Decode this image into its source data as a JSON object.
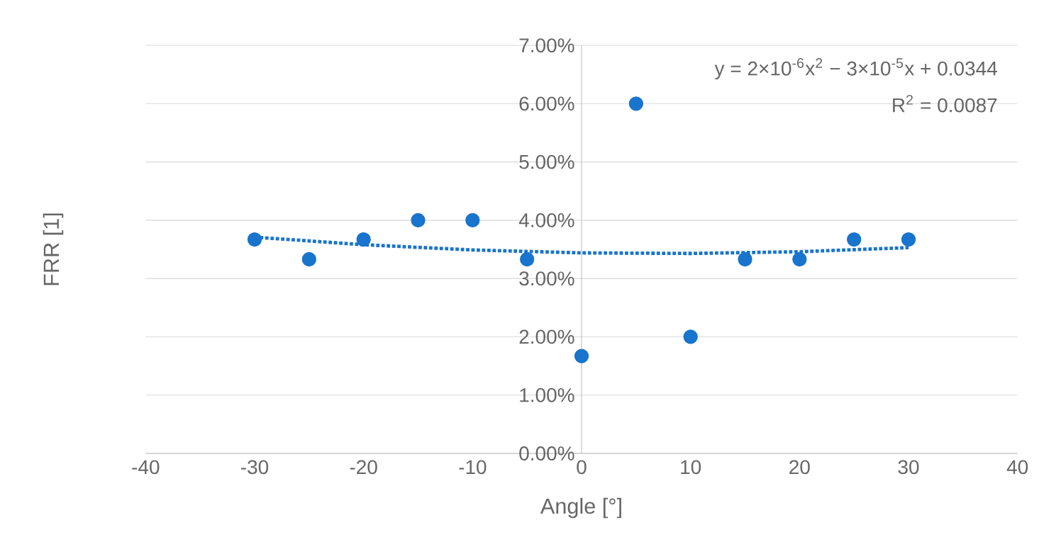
{
  "chart_data": {
    "type": "scatter",
    "xlabel": "Angle [°]",
    "ylabel": "FRR [1]",
    "annotations": [
      "y = 2×10$^{-6}$x$^{2}$ − 3×10$^{-5}$x + 0.0344",
      "R$^{2}$ = 0.0087"
    ],
    "series": [
      {
        "color": "#1874cd",
        "marker": "circle",
        "x": [
          -30,
          -25,
          -20,
          -15,
          -10,
          -5,
          0,
          5,
          10,
          15,
          20,
          25,
          30
        ],
        "values": [
          3.67,
          3.33,
          3.67,
          4.0,
          4.0,
          3.33,
          1.67,
          6.0,
          2.0,
          3.33,
          3.33,
          3.67,
          3.67
        ]
      },
      {
        "type": "line",
        "color": "#1874cd",
        "line_style": "dotted",
        "marker": "none",
        "x": [
          -30,
          -20,
          -10,
          0,
          10,
          20,
          30
        ],
        "values": [
          3.71,
          3.58,
          3.49,
          3.44,
          3.43,
          3.46,
          3.53
        ]
      }
    ],
    "xlim": [
      -40,
      40
    ],
    "xticks": [
      -40,
      -30,
      -20,
      -10,
      0,
      10,
      20,
      30,
      40
    ],
    "ylim": [
      0,
      7
    ],
    "yticks": [
      {
        "value": 0,
        "label": "0.00%"
      },
      {
        "value": 1,
        "label": "1.00%"
      },
      {
        "value": 2,
        "label": "2.00%"
      },
      {
        "value": 3,
        "label": "3.00%"
      },
      {
        "value": 4,
        "label": "4.00%"
      },
      {
        "value": 5,
        "label": "5.00%"
      },
      {
        "value": 6,
        "label": "6.00%"
      },
      {
        "value": 7,
        "label": "7.00%"
      }
    ],
    "grid": "y"
  }
}
